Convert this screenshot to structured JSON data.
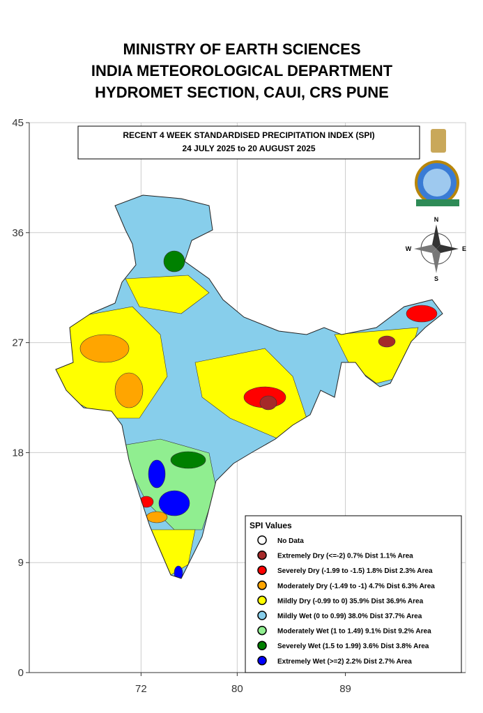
{
  "header": {
    "lines": [
      "MINISTRY OF EARTH SCIENCES",
      "INDIA METEOROLOGICAL DEPARTMENT",
      "HYDROMET SECTION, CAUI, CRS PUNE"
    ]
  },
  "map": {
    "title_lines": [
      "RECENT 4 WEEK STANDARDISED PRECIPITATION INDEX (SPI)",
      "24 JULY 2025 to 20 AUGUST 2025"
    ],
    "compass": {
      "n": "N",
      "e": "E",
      "s": "S",
      "w": "W"
    },
    "xlim": [
      62.7,
      99
    ],
    "ylim": [
      0,
      45
    ],
    "xticks": [
      72,
      80,
      89
    ],
    "yticks": [
      45,
      36,
      27,
      18,
      9,
      0
    ],
    "legend": {
      "title": "SPI Values",
      "items": [
        {
          "label": "No Data",
          "color": "#ffffff"
        },
        {
          "label": "Extremely Dry (<=-2) 0.7% Dist 1.1% Area",
          "color": "#a52a2a"
        },
        {
          "label": "Severely Dry (-1.99 to -1.5) 1.8% Dist 2.3% Area",
          "color": "#ff0000"
        },
        {
          "label": "Moderately Dry (-1.49 to -1) 4.7% Dist 6.3% Area",
          "color": "#ffa500"
        },
        {
          "label": "Mildly Dry (-0.99 to 0) 35.9% Dist 36.9% Area",
          "color": "#ffff00"
        },
        {
          "label": "Mildly Wet (0 to 0.99) 38.0% Dist 37.7% Area",
          "color": "#87ceeb"
        },
        {
          "label": "Moderately Wet (1 to 1.49) 9.1% Dist 9.2% Area",
          "color": "#90ee90"
        },
        {
          "label": "Severely Wet (1.5 to 1.99) 3.6% Dist 3.8% Area",
          "color": "#008000"
        },
        {
          "label": "Extremely Wet (>=2) 2.2% Dist 2.7% Area",
          "color": "#0000ff"
        }
      ]
    }
  }
}
